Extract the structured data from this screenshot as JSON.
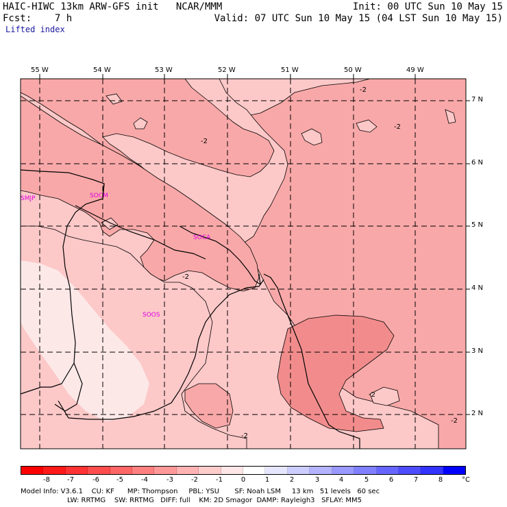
{
  "header": {
    "title_left": "HAIC-HIWC 13km ARW-GFS init   NCAR/MMM",
    "fcst": "Fcst:    7 h",
    "init": "Init: 00 UTC Sun 10 May 15",
    "valid": "Valid: 07 UTC Sun 10 May 15 (04 LST Sun 10 May 15)",
    "field": "Lifted index"
  },
  "longitude_labels": [
    "55 W",
    "54 W",
    "53 W",
    "52 W",
    "51 W",
    "50 W",
    "49 W"
  ],
  "latitude_labels": [
    "7 N",
    "6 N",
    "5 N",
    "4 N",
    "3 N",
    "2 N"
  ],
  "stations": [
    "SMJP",
    "SOCM",
    "SOCA",
    "SOOS"
  ],
  "contour_label": "-2",
  "colorbar": {
    "ticks": [
      "-8",
      "-7",
      "-6",
      "-5",
      "-4",
      "-3",
      "-2",
      "-1",
      "0",
      "1",
      "2",
      "3",
      "4",
      "5",
      "6",
      "7",
      "8"
    ],
    "unit": "°C",
    "colors": [
      "#ff0000",
      "#ff1a1a",
      "#ff3333",
      "#ff4d4d",
      "#ff6666",
      "#ff8080",
      "#ff9999",
      "#ffb3b3",
      "#ffcccc",
      "#ffe6e6",
      "#ffffff",
      "#e6e6ff",
      "#ccccff",
      "#b3b3ff",
      "#9999ff",
      "#8080ff",
      "#6666ff",
      "#4d4dff",
      "#3333ff",
      "#0000ff"
    ]
  },
  "footer": {
    "line1": "Model Info: V3.6.1    CU: KF      MP: Thompson     PBL: YSU       SF: Noah LSM     13 km   51 levels   60 sec",
    "line2": "LW: RRTMG    SW: RRTMG   DIFF: full    KM: 2D Smagor  DAMP: Rayleigh3   SFLAY: MM5"
  },
  "map_colors": {
    "pink_light": "#fcc8c8",
    "pink_mid": "#f8a8a8",
    "pink_dark": "#f28c8c",
    "white_pink": "#fde8e8"
  }
}
